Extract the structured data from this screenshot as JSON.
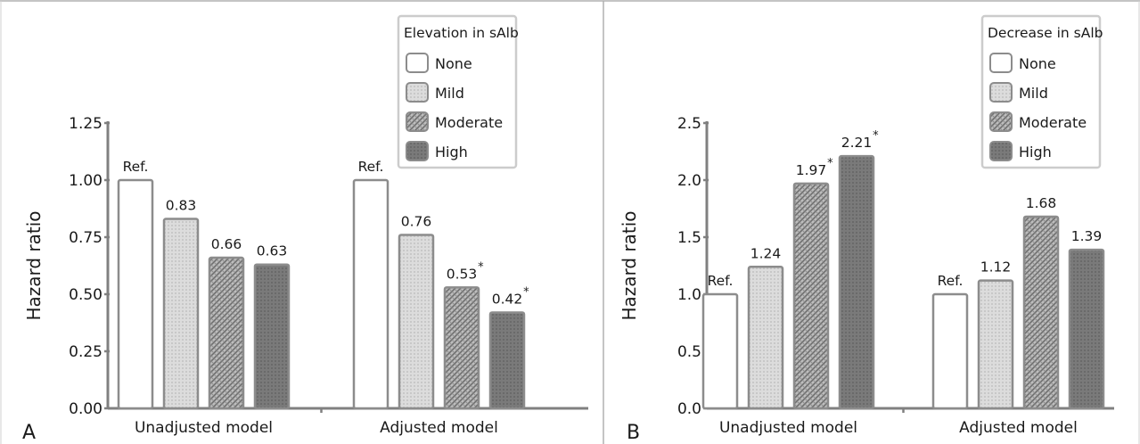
{
  "chart_data": [
    {
      "type": "bar",
      "panel_label": "A",
      "ylabel": "Hazard ratio",
      "ylim": [
        0,
        1.25
      ],
      "yticks": [
        "0.00",
        "0.25",
        "0.50",
        "0.75",
        "1.00",
        "1.25"
      ],
      "categories": [
        "Unadjusted model",
        "Adjusted model"
      ],
      "legend_title": "Elevation in sAlb",
      "legend_placement": "top-right",
      "series": [
        {
          "name": "None",
          "values": [
            1.0,
            1.0
          ],
          "labels": [
            "Ref.",
            "Ref."
          ],
          "significant": [
            false,
            false
          ],
          "fill": "#ffffff"
        },
        {
          "name": "Mild",
          "values": [
            0.83,
            0.76
          ],
          "labels": [
            "0.83",
            "0.76"
          ],
          "significant": [
            false,
            false
          ],
          "fill": "#d9d9d9"
        },
        {
          "name": "Moderate",
          "values": [
            0.66,
            0.53
          ],
          "labels": [
            "0.66",
            "0.53"
          ],
          "significant": [
            false,
            true
          ],
          "fill": "#a6a6a6"
        },
        {
          "name": "High",
          "values": [
            0.63,
            0.42
          ],
          "labels": [
            "0.63",
            "0.42"
          ],
          "significant": [
            false,
            true
          ],
          "fill": "#7d7d7d"
        }
      ]
    },
    {
      "type": "bar",
      "panel_label": "B",
      "ylabel": "Hazard ratio",
      "ylim": [
        0,
        2.5
      ],
      "yticks": [
        "0.0",
        "0.5",
        "1.0",
        "1.5",
        "2.0",
        "2.5"
      ],
      "categories": [
        "Unadjusted model",
        "Adjusted model"
      ],
      "legend_title": "Decrease in sAlb",
      "legend_placement": "top-right",
      "series": [
        {
          "name": "None",
          "values": [
            1.0,
            1.0
          ],
          "labels": [
            "Ref.",
            "Ref."
          ],
          "significant": [
            false,
            false
          ],
          "fill": "#ffffff"
        },
        {
          "name": "Mild",
          "values": [
            1.24,
            1.12
          ],
          "labels": [
            "1.24",
            "1.12"
          ],
          "significant": [
            false,
            false
          ],
          "fill": "#d9d9d9"
        },
        {
          "name": "Moderate",
          "values": [
            1.97,
            1.68
          ],
          "labels": [
            "1.97",
            "1.68"
          ],
          "significant": [
            true,
            false
          ],
          "fill": "#a6a6a6"
        },
        {
          "name": "High",
          "values": [
            2.21,
            1.39
          ],
          "labels": [
            "2.21",
            "1.39"
          ],
          "significant": [
            true,
            false
          ],
          "fill": "#7d7d7d"
        }
      ]
    }
  ],
  "significance_marker": "*",
  "colors": {
    "axis": "#808080",
    "bar_stroke": "#8c8c8c",
    "panel_border": "#b0b0b0",
    "legend_border": "#cccccc"
  }
}
